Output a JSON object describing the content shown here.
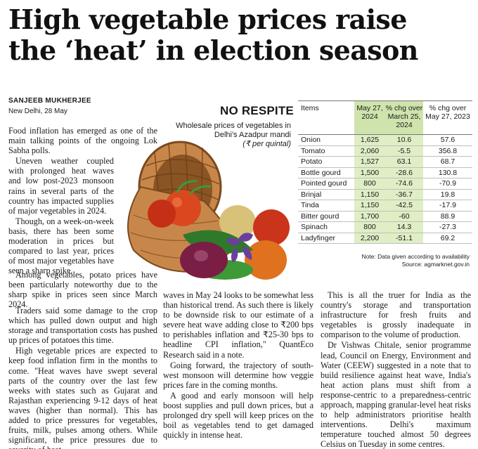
{
  "headline": {
    "line1": "High vegetable prices raise",
    "line2": "the ‘heat’ in election season"
  },
  "byline": {
    "author": "SANJEEB MUKHERJEE",
    "dateline": "New Delhi, 28 May"
  },
  "graphic": {
    "title": "NO RESPITE",
    "subtitle": "Wholesale prices of vegetables in Delhi's Azadpur mandi",
    "unit": "(₹ per quintal)",
    "table": {
      "headers": [
        "Items",
        "May 27, 2024",
        "% chg over March 25, 2024",
        "% chg over May 27, 2023"
      ],
      "rows": [
        [
          "Onion",
          "1,625",
          "10.6",
          "57.6"
        ],
        [
          "Tomato",
          "2,060",
          "-5.5",
          "356.8"
        ],
        [
          "Potato",
          "1,527",
          "63.1",
          "68.7"
        ],
        [
          "Bottle gourd",
          "1,500",
          "-28.6",
          "130.8"
        ],
        [
          "Pointed gourd",
          "800",
          "-74.6",
          "-70.9"
        ],
        [
          "Brinjal",
          "1,150",
          "-36.7",
          "19.8"
        ],
        [
          "Tinda",
          "1,150",
          "-42.5",
          "-17.9"
        ],
        [
          "Bitter gourd",
          "1,700",
          "-60",
          "88.9"
        ],
        [
          "Spinach",
          "800",
          "14.3",
          "-27.3"
        ],
        [
          "Ladyfinger",
          "2,200",
          "-51.1",
          "69.2"
        ]
      ]
    },
    "note": "Note: Data given according to availability",
    "source": "Source: agmarknet.gov.in"
  },
  "article": {
    "col1_top": [
      "Food inflation has emerged as one of the main talking points of the ongoing Lok Sabha polls.",
      "Uneven weather coupled with prolonged heat waves and low post-2023 monsoon rains in several parts of the country has impacted supplies of major vegetables in 2024.",
      "Though, on a week-on-week basis, there has been some moderation in prices but compared to last year, prices of most major vegetables have seen a sharp spike.",
      "Among vegetables, potato prices have been particularly noteworthy due to the sharp spike in prices seen since March 2024."
    ],
    "col1_bottom": [
      "Traders said some damage to the crop which has pulled down output and high storage and transportation costs has pushed up prices of potatoes this time.",
      "High vegetable prices are expected to keep food inflation firm in the months to come. \"Heat waves have swept several parts of the country over the last few weeks with states such as Gujarat and Rajasthan experiencing 9-12 days of heat waves (higher than normal). This has added to price pressures for vegetables, fruits, milk, pulses among others. While significant, the price pressures due to severity of heat"
    ],
    "col2": [
      "waves in May 24 looks to be somewhat less than historical trend. As such there is likely to be downside risk to our estimate of a severe heat wave adding close to ₹200 bps to perishables inflation and ₹25-30 bps to headline CPI inflation,\" QuantEco Research said in a note.",
      "Going forward, the trajectory of south-west monsoon will determine how veggie prices fare in the coming months.",
      "A good and early monsoon will help boost supplies and pull down prices, but a prolonged dry spell will keep prices on the boil as vegetables tend to get damaged quickly in intense heat."
    ],
    "col3": [
      "This is all the truer for India as the country's storage and transportation infrastructure for fresh fruits and vegetables is grossly inadequate in comparison to the volume of production.",
      "Dr Vishwas Chitale, senior programme lead, Council on Energy, Environment and Water (CEEW) suggested in a note that to build resilience against heat wave, India's heat action plans must shift from a response-centric to a preparedness-centric approach, mapping granular-level heat risks to help administrators prioritise health interventions. Delhi's maximum temperature touched almost 50 degrees Celsius on Tuesday in some centres."
    ]
  }
}
